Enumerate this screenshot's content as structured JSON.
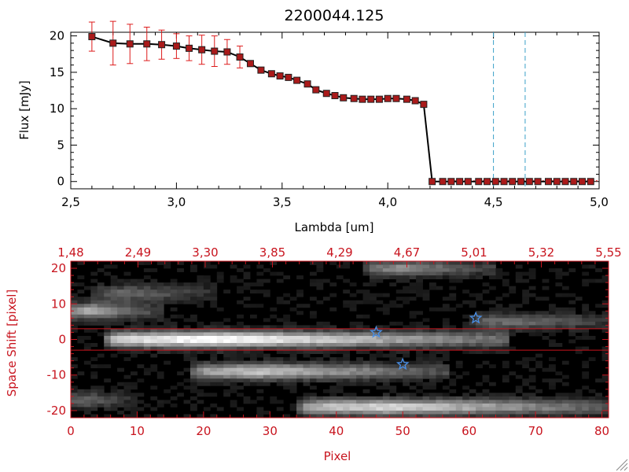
{
  "chart_data": [
    {
      "type": "line",
      "title": "2200044.125",
      "xlabel": "Lambda [um]",
      "ylabel": "Flux [mJy]",
      "xlim": [
        2.5,
        5.0
      ],
      "ylim": [
        -1,
        20.5
      ],
      "xticks": [
        "2.5",
        "3.0",
        "3.5",
        "4.0",
        "4.5",
        "5.0"
      ],
      "yticks": [
        "0",
        "5",
        "10",
        "15",
        "20"
      ],
      "line_color": "#000000",
      "marker_color": "#aa1a1a",
      "errorbar_color": "#dd1a1a",
      "vline_color": "#3aa0c8",
      "vlines": [
        4.5,
        4.65
      ],
      "x": [
        2.6,
        2.7,
        2.78,
        2.86,
        2.93,
        3.0,
        3.06,
        3.12,
        3.18,
        3.24,
        3.3,
        3.35,
        3.4,
        3.45,
        3.49,
        3.53,
        3.57,
        3.62,
        3.66,
        3.71,
        3.75,
        3.79,
        3.84,
        3.88,
        3.92,
        3.96,
        4.0,
        4.04,
        4.09,
        4.13,
        4.17,
        4.21,
        4.26,
        4.3,
        4.34,
        4.38,
        4.43,
        4.47,
        4.51,
        4.55,
        4.59,
        4.63,
        4.67,
        4.71,
        4.76,
        4.8,
        4.84,
        4.88,
        4.92,
        4.96
      ],
      "y": [
        19.9,
        19.0,
        18.9,
        18.9,
        18.8,
        18.6,
        18.3,
        18.1,
        17.9,
        17.8,
        17.1,
        16.2,
        15.3,
        14.8,
        14.5,
        14.3,
        13.9,
        13.4,
        12.6,
        12.1,
        11.8,
        11.5,
        11.4,
        11.3,
        11.3,
        11.3,
        11.4,
        11.4,
        11.3,
        11.1,
        10.6,
        0.0,
        0.0,
        0.0,
        0.0,
        0.0,
        0.0,
        0.0,
        0.0,
        0.0,
        0.0,
        0.0,
        0.0,
        0.0,
        0.0,
        0.0,
        0.0,
        0.0,
        0.0,
        0.0
      ],
      "yerr": [
        2.0,
        3.0,
        2.7,
        2.3,
        2.0,
        1.7,
        1.7,
        2.0,
        2.1,
        1.7,
        1.5,
        0.3,
        0.3,
        0.3,
        0.3,
        0.3,
        0.3,
        0.3,
        0.3,
        0.3,
        0.3,
        0.3,
        0.3,
        0.3,
        0.3,
        0.3,
        0.3,
        0.3,
        0.3,
        0.3,
        0.3,
        0.2,
        0.2,
        0.2,
        0.2,
        0.2,
        0.2,
        0.2,
        0.2,
        0.2,
        0.2,
        0.2,
        0.2,
        0.2,
        0.2,
        0.2,
        0.2,
        0.2,
        0.2,
        0.2
      ]
    },
    {
      "type": "heatmap",
      "xlabel": "Pixel",
      "ylabel": "Space Shift [pixel]",
      "xlim": [
        0,
        81
      ],
      "ylim": [
        -22,
        22
      ],
      "xticks": [
        "0",
        "10",
        "20",
        "30",
        "40",
        "50",
        "60",
        "70",
        "80"
      ],
      "yticks": [
        "-20",
        "-10",
        "0",
        "10",
        "20"
      ],
      "top_axis_ticks": [
        "1.48",
        "2.49",
        "3.30",
        "3.85",
        "4.29",
        "4.67",
        "5.01",
        "5.32",
        "5.55"
      ],
      "axis_color": "#c8141e",
      "star_color": "#4a90e8",
      "extraction_lines_y": [
        3,
        -3
      ],
      "stars": [
        {
          "x": 46,
          "y": 2
        },
        {
          "x": 50,
          "y": -7
        },
        {
          "x": 61,
          "y": 6
        }
      ],
      "traces": [
        {
          "x0": 0,
          "x1": 12,
          "y": 8,
          "peak": 0.62
        },
        {
          "x0": 5,
          "x1": 20,
          "y": 13,
          "peak": 0.35
        },
        {
          "x0": 0,
          "x1": 8,
          "y": -17,
          "peak": 0.35
        },
        {
          "x0": 7,
          "x1": 64,
          "y": 0,
          "peak": 1.0
        },
        {
          "x0": 20,
          "x1": 55,
          "y": -9,
          "peak": 0.72
        },
        {
          "x0": 36,
          "x1": 80,
          "y": -19,
          "peak": 0.82
        },
        {
          "x0": 46,
          "x1": 62,
          "y": 20,
          "peak": 0.5
        },
        {
          "x0": 62,
          "x1": 81,
          "y": 5,
          "peak": 0.38
        }
      ]
    }
  ]
}
